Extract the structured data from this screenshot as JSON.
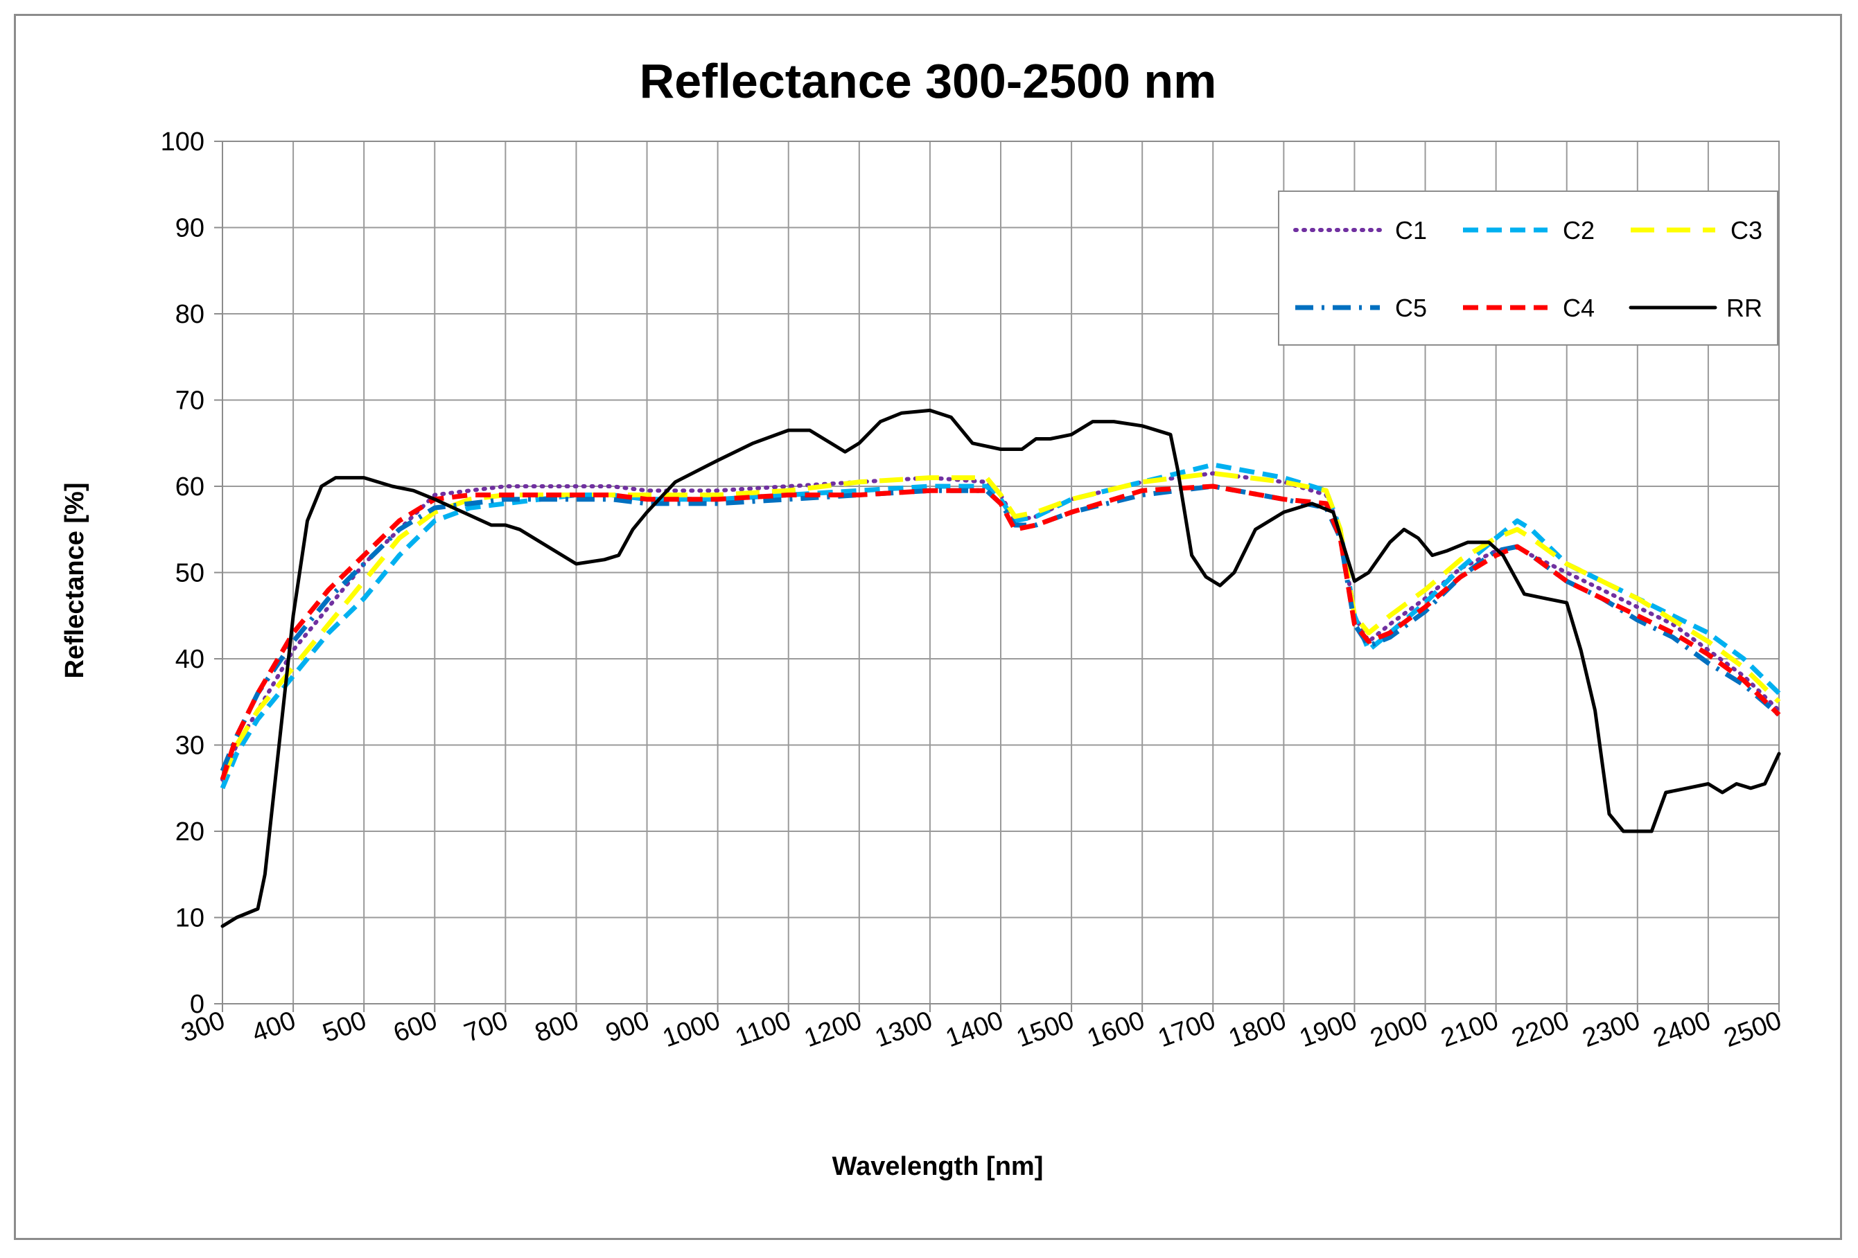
{
  "chart_data": {
    "type": "line",
    "title": "Reflectance 300-2500 nm",
    "xlabel": "Wavelength [nm]",
    "ylabel": "Reflectance [%]",
    "xlim": [
      300,
      2500
    ],
    "ylim": [
      0,
      100
    ],
    "x_ticks": [
      "300",
      "400",
      "500",
      "600",
      "700",
      "800",
      "900",
      "1000",
      "1100",
      "1200",
      "1300",
      "1400",
      "1500",
      "1600",
      "1700",
      "1800",
      "1900",
      "2000",
      "2100",
      "2200",
      "2300",
      "2400",
      "2500"
    ],
    "y_ticks": [
      "0",
      "10",
      "20",
      "30",
      "40",
      "50",
      "60",
      "70",
      "80",
      "90",
      "100"
    ],
    "grid": true,
    "legend_position": "top-right",
    "legend_order": [
      "C1",
      "C2",
      "C3",
      "C5",
      "C4",
      "RR"
    ],
    "series": [
      {
        "name": "C1",
        "color": "#7030A0",
        "style": "dotted",
        "x": [
          300,
          320,
          350,
          400,
          450,
          500,
          550,
          600,
          650,
          700,
          750,
          800,
          850,
          900,
          1000,
          1100,
          1200,
          1300,
          1380,
          1400,
          1420,
          1450,
          1500,
          1600,
          1700,
          1800,
          1860,
          1880,
          1900,
          1920,
          1950,
          2000,
          2050,
          2100,
          2130,
          2150,
          2200,
          2250,
          2300,
          2350,
          2400,
          2450,
          2500
        ],
        "y": [
          26,
          30,
          34,
          41,
          46,
          51,
          55,
          59,
          59.5,
          60,
          60,
          60,
          60,
          59.5,
          59.5,
          60,
          60.5,
          61,
          60.5,
          59,
          56,
          56.5,
          58.5,
          60.5,
          61.5,
          60.5,
          59,
          55,
          45,
          42,
          44,
          47,
          50.5,
          52.5,
          53,
          52,
          50,
          48,
          46,
          44,
          41,
          38,
          34
        ]
      },
      {
        "name": "C2",
        "color": "#00B0F0",
        "style": "dashed",
        "x": [
          300,
          320,
          350,
          400,
          450,
          500,
          550,
          600,
          650,
          700,
          750,
          800,
          850,
          900,
          1000,
          1100,
          1200,
          1300,
          1380,
          1400,
          1420,
          1450,
          1500,
          1600,
          1700,
          1800,
          1860,
          1880,
          1900,
          1920,
          1950,
          2000,
          2050,
          2100,
          2130,
          2150,
          2200,
          2250,
          2300,
          2350,
          2400,
          2450,
          2500
        ],
        "y": [
          25,
          29,
          33,
          38,
          43,
          47,
          52,
          56,
          57.5,
          58,
          58.5,
          59,
          59,
          58.5,
          58.5,
          59,
          59.5,
          60,
          60,
          58.5,
          56,
          56.5,
          58.5,
          60.5,
          62.5,
          61,
          59.5,
          55,
          45,
          41,
          43,
          46.5,
          50.5,
          54,
          56,
          55,
          51,
          49,
          47,
          45,
          43,
          40,
          36
        ]
      },
      {
        "name": "C3",
        "color": "#FFFF00",
        "style": "long-dashed",
        "x": [
          300,
          320,
          350,
          400,
          450,
          500,
          550,
          600,
          650,
          700,
          750,
          800,
          850,
          900,
          1000,
          1100,
          1200,
          1300,
          1380,
          1400,
          1420,
          1450,
          1500,
          1600,
          1700,
          1800,
          1860,
          1880,
          1900,
          1920,
          1950,
          2000,
          2050,
          2100,
          2130,
          2150,
          2200,
          2250,
          2300,
          2350,
          2400,
          2450,
          2500
        ],
        "y": [
          26,
          30,
          34,
          39,
          44,
          49,
          54,
          57,
          58.5,
          59,
          59,
          59,
          59,
          59,
          59,
          59.5,
          60.5,
          61,
          61,
          59,
          56.5,
          57,
          58.5,
          60.5,
          61.5,
          60.5,
          59.5,
          55,
          45,
          43,
          45,
          48,
          51.5,
          54,
          55,
          54,
          51,
          49,
          47,
          44.5,
          42,
          39,
          35
        ]
      },
      {
        "name": "C5",
        "color": "#0070C0",
        "style": "dash-dot",
        "x": [
          300,
          320,
          350,
          400,
          450,
          500,
          550,
          600,
          650,
          700,
          750,
          800,
          850,
          900,
          1000,
          1100,
          1200,
          1300,
          1380,
          1400,
          1420,
          1450,
          1500,
          1600,
          1700,
          1800,
          1860,
          1880,
          1900,
          1920,
          1950,
          2000,
          2050,
          2100,
          2130,
          2150,
          2200,
          2250,
          2300,
          2350,
          2400,
          2450,
          2500
        ],
        "y": [
          27,
          31,
          36,
          42,
          47,
          51,
          55,
          57.5,
          58,
          58.5,
          58.5,
          58.5,
          58.5,
          58,
          58,
          58.5,
          59,
          59.5,
          59.5,
          58,
          55.5,
          55.5,
          57,
          59,
          60,
          58.5,
          57.5,
          54,
          44,
          41.5,
          42.5,
          45.5,
          49.5,
          52.5,
          53,
          52,
          49,
          47,
          44.5,
          42.5,
          39.5,
          37,
          33.5
        ]
      },
      {
        "name": "C4",
        "color": "#FF0000",
        "style": "dashed",
        "x": [
          300,
          320,
          350,
          400,
          450,
          500,
          550,
          600,
          650,
          700,
          750,
          800,
          850,
          900,
          1000,
          1100,
          1200,
          1300,
          1380,
          1400,
          1420,
          1450,
          1500,
          1600,
          1700,
          1800,
          1860,
          1880,
          1900,
          1920,
          1950,
          2000,
          2050,
          2100,
          2130,
          2150,
          2200,
          2250,
          2300,
          2350,
          2400,
          2450,
          2500
        ],
        "y": [
          26,
          31,
          36,
          43,
          48,
          52,
          56,
          58.5,
          59,
          59,
          59,
          59,
          59,
          58.5,
          58.5,
          59,
          59,
          59.5,
          59.5,
          58,
          55,
          55.5,
          57,
          59.5,
          60,
          58.5,
          58,
          54,
          44,
          42,
          43,
          46,
          49.5,
          52,
          53,
          52,
          49,
          47,
          45,
          43,
          40.5,
          37.5,
          33.5
        ]
      },
      {
        "name": "RR",
        "color": "#000000",
        "style": "solid",
        "x": [
          300,
          320,
          350,
          360,
          380,
          400,
          420,
          440,
          460,
          480,
          500,
          540,
          570,
          600,
          640,
          680,
          700,
          720,
          760,
          800,
          840,
          860,
          880,
          900,
          940,
          1000,
          1050,
          1100,
          1130,
          1160,
          1180,
          1200,
          1230,
          1260,
          1300,
          1330,
          1360,
          1400,
          1430,
          1450,
          1470,
          1500,
          1530,
          1560,
          1600,
          1640,
          1650,
          1670,
          1690,
          1710,
          1730,
          1760,
          1800,
          1840,
          1870,
          1900,
          1920,
          1950,
          1970,
          1990,
          2010,
          2030,
          2060,
          2090,
          2110,
          2140,
          2170,
          2200,
          2220,
          2240,
          2260,
          2280,
          2300,
          2320,
          2340,
          2370,
          2400,
          2420,
          2440,
          2460,
          2480,
          2500
        ],
        "y": [
          9,
          10,
          11,
          15,
          30,
          45,
          56,
          60,
          61,
          61,
          61,
          60,
          59.5,
          58.5,
          57,
          55.5,
          55.5,
          55,
          53,
          51,
          51.5,
          52,
          55,
          57,
          60.5,
          63,
          65,
          66.5,
          66.5,
          65,
          64,
          65,
          67.5,
          68.5,
          68.8,
          68,
          65,
          64.3,
          64.3,
          65.5,
          65.5,
          66,
          67.5,
          67.5,
          67,
          66,
          62,
          52,
          49.5,
          48.5,
          50,
          55,
          57,
          58,
          57,
          49,
          50,
          53.5,
          55,
          54,
          52,
          52.5,
          53.5,
          53.5,
          52,
          47.5,
          47,
          46.5,
          41,
          34,
          22,
          20,
          20,
          20,
          24.5,
          25,
          25.5,
          24.5,
          25.5,
          25,
          25.5,
          29
        ]
      }
    ]
  }
}
